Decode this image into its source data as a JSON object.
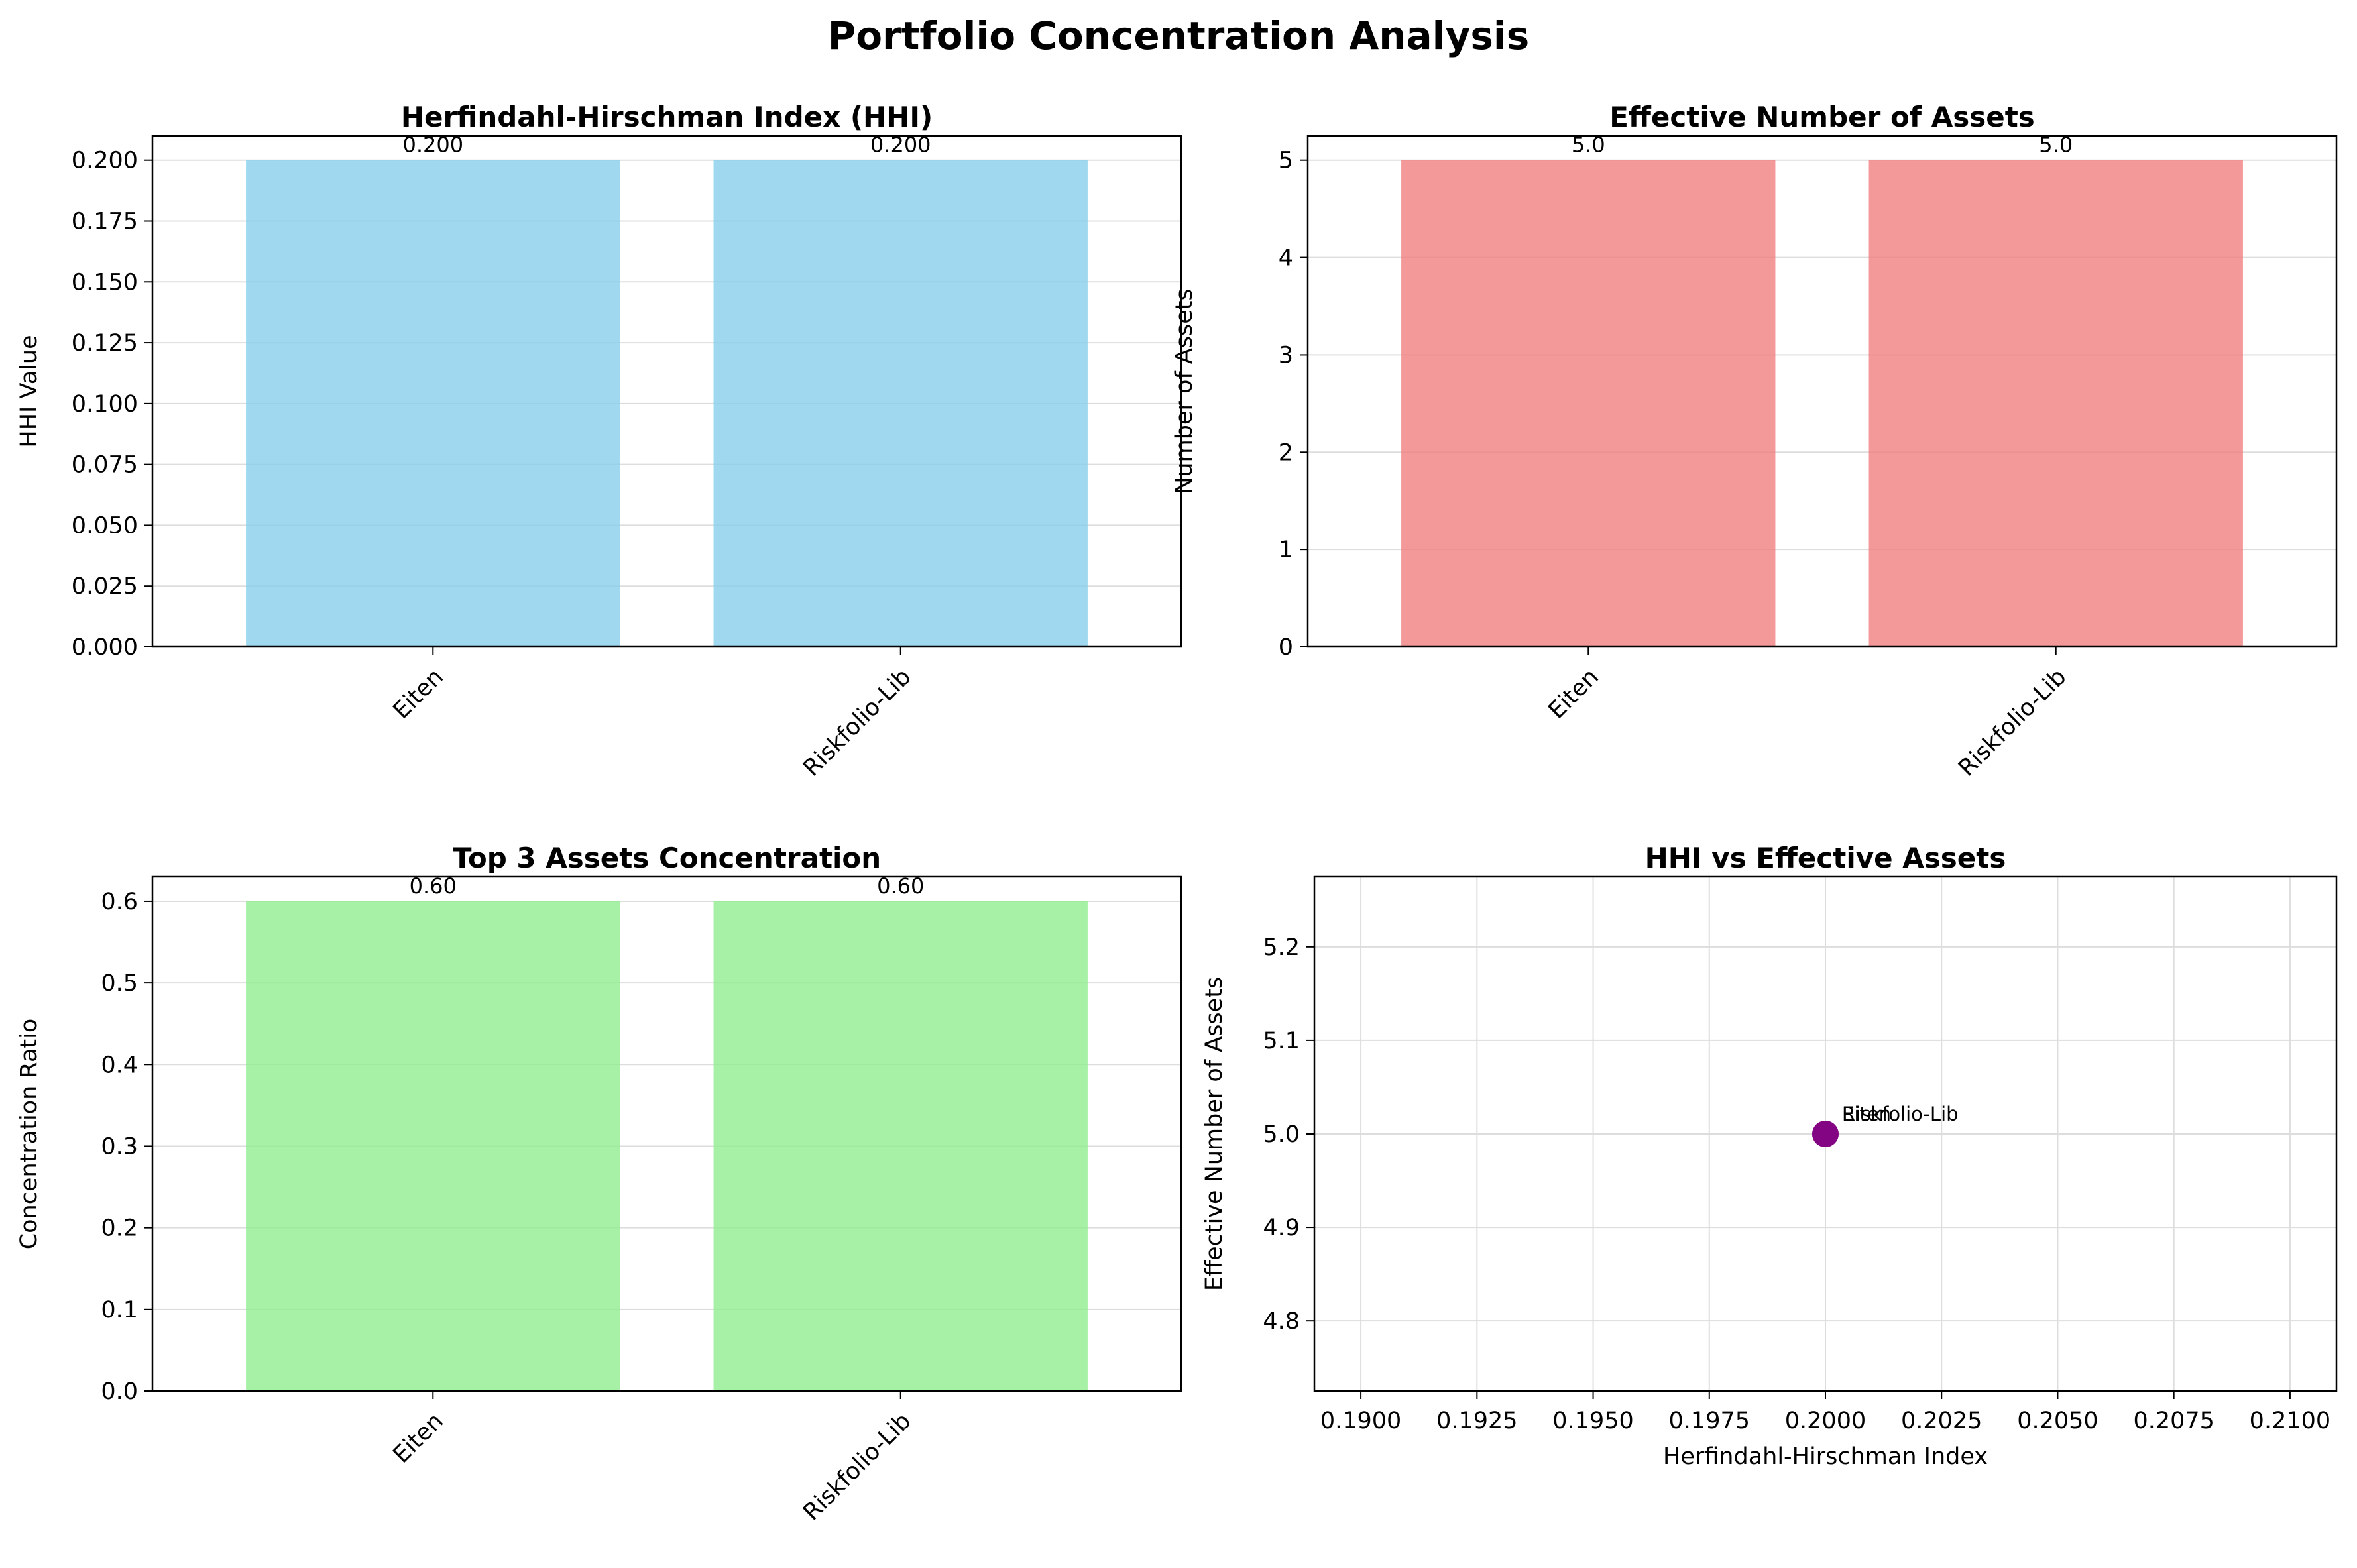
{
  "figure": {
    "suptitle": "Portfolio Concentration Analysis"
  },
  "colors": {
    "hhi_bar": "#87ceeb",
    "effective_bar": "#f08080",
    "top3_bar": "#90ee90",
    "scatter_point": "#800080",
    "grid": "#dddddd",
    "axis": "#000000"
  },
  "chart_data": [
    {
      "type": "bar",
      "title": "Herfindahl-Hirschman Index (HHI)",
      "xlabel": "",
      "ylabel": "HHI Value",
      "categories": [
        "Eiten",
        "Riskfolio-Lib"
      ],
      "values": [
        0.2,
        0.2
      ],
      "value_labels": [
        "0.200",
        "0.200"
      ],
      "ylim": [
        0,
        0.21
      ],
      "yticks": [
        0.0,
        0.025,
        0.05,
        0.075,
        0.1,
        0.125,
        0.15,
        0.175,
        0.2
      ],
      "ytick_labels": [
        "0.000",
        "0.025",
        "0.050",
        "0.075",
        "0.100",
        "0.125",
        "0.150",
        "0.175",
        "0.200"
      ],
      "grid": "y",
      "color_key": "hhi_bar"
    },
    {
      "type": "bar",
      "title": "Effective Number of Assets",
      "xlabel": "",
      "ylabel": "Number of Assets",
      "categories": [
        "Eiten",
        "Riskfolio-Lib"
      ],
      "values": [
        5.0,
        5.0
      ],
      "value_labels": [
        "5.0",
        "5.0"
      ],
      "ylim": [
        0,
        5.25
      ],
      "yticks": [
        0,
        1,
        2,
        3,
        4,
        5
      ],
      "ytick_labels": [
        "0",
        "1",
        "2",
        "3",
        "4",
        "5"
      ],
      "grid": "y",
      "color_key": "effective_bar"
    },
    {
      "type": "bar",
      "title": "Top 3 Assets Concentration",
      "xlabel": "",
      "ylabel": "Concentration Ratio",
      "categories": [
        "Eiten",
        "Riskfolio-Lib"
      ],
      "values": [
        0.6,
        0.6
      ],
      "value_labels": [
        "0.60",
        "0.60"
      ],
      "ylim": [
        0,
        0.63
      ],
      "yticks": [
        0.0,
        0.1,
        0.2,
        0.3,
        0.4,
        0.5,
        0.6
      ],
      "ytick_labels": [
        "0.0",
        "0.1",
        "0.2",
        "0.3",
        "0.4",
        "0.5",
        "0.6"
      ],
      "grid": "y",
      "color_key": "top3_bar"
    },
    {
      "type": "scatter",
      "title": "HHI vs Effective Assets",
      "xlabel": "Herfindahl-Hirschman Index",
      "ylabel": "Effective Number of Assets",
      "points": [
        {
          "label": "Eiten",
          "x": 0.2,
          "y": 5.0
        },
        {
          "label": "Riskfolio-Lib",
          "x": 0.2,
          "y": 5.0
        }
      ],
      "xlim": [
        0.189,
        0.211
      ],
      "ylim": [
        4.725,
        5.275
      ],
      "xticks": [
        0.19,
        0.1925,
        0.195,
        0.1975,
        0.2,
        0.2025,
        0.205,
        0.2075,
        0.21
      ],
      "xtick_labels": [
        "0.1900",
        "0.1925",
        "0.1950",
        "0.1975",
        "0.2000",
        "0.2025",
        "0.2050",
        "0.2075",
        "0.2100"
      ],
      "yticks": [
        4.8,
        4.9,
        5.0,
        5.1,
        5.2
      ],
      "ytick_labels": [
        "4.8",
        "4.9",
        "5.0",
        "5.1",
        "5.2"
      ],
      "grid": "both",
      "color_key": "scatter_point"
    }
  ]
}
